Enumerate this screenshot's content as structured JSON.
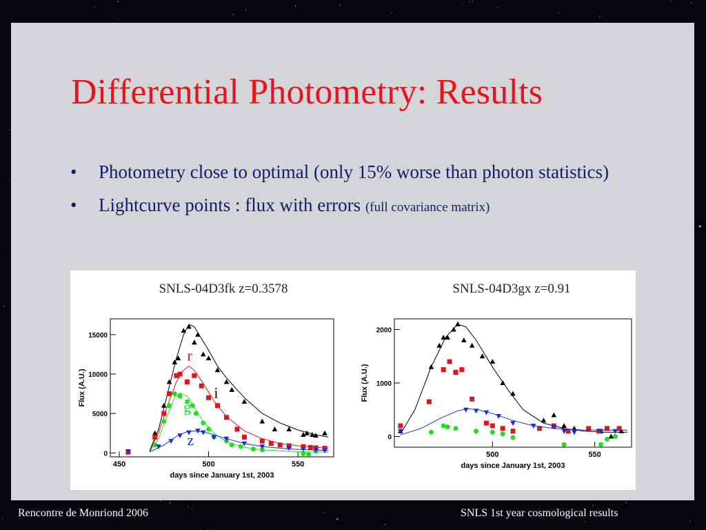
{
  "slide": {
    "title": "Differential Photometry: Results",
    "bullets": [
      {
        "text": "Photometry close to optimal (only 15% worse than photon statistics)",
        "note": ""
      },
      {
        "text": "Lightcurve points : flux with errors",
        "note": "(full covariance matrix)"
      }
    ],
    "footer_left": "Rencontre de Monriond 2006",
    "footer_right": "SNLS 1st year cosmological  results"
  },
  "colors": {
    "title": "#e8141b",
    "bullets": "#141a6e",
    "panel": "#d3d5d9",
    "band_i": "#000000",
    "band_r": "#e0141b",
    "band_g": "#1ee01e",
    "band_z": "#1a2fd6"
  },
  "chart_data": [
    {
      "type": "scatter",
      "title": "SNLS-04D3fk z=0.3578",
      "xlabel": "days since January 1st, 2003",
      "ylabel": "Flux (A.U.)",
      "xlim": [
        445,
        570
      ],
      "ylim": [
        -500,
        17000
      ],
      "xticks": [
        450,
        500,
        550
      ],
      "yticks": [
        0,
        5000,
        10000,
        15000
      ],
      "series": [
        {
          "name": "i",
          "color": "#000000",
          "marker": "triangle-up",
          "points": [
            [
              455,
              100
            ],
            [
              470,
              2500
            ],
            [
              475,
              6000
            ],
            [
              478,
              9000
            ],
            [
              481,
              11500
            ],
            [
              483,
              12000
            ],
            [
              486,
              15500
            ],
            [
              489,
              16000
            ],
            [
              492,
              14000
            ],
            [
              494,
              15000
            ],
            [
              497,
              12500
            ],
            [
              500,
              12000
            ],
            [
              505,
              10500
            ],
            [
              510,
              9000
            ],
            [
              513,
              8000
            ],
            [
              520,
              6500
            ],
            [
              530,
              4000
            ],
            [
              537,
              3000
            ],
            [
              545,
              3000
            ],
            [
              553,
              2300
            ],
            [
              555,
              2500
            ],
            [
              558,
              2300
            ],
            [
              560,
              2200
            ],
            [
              565,
              2500
            ]
          ],
          "curve": [
            [
              467,
              300
            ],
            [
              472,
              3000
            ],
            [
              477,
              7500
            ],
            [
              482,
              12000
            ],
            [
              486,
              15000
            ],
            [
              489,
              16300
            ],
            [
              492,
              16000
            ],
            [
              496,
              14500
            ],
            [
              500,
              13000
            ],
            [
              505,
              11000
            ],
            [
              510,
              9500
            ],
            [
              520,
              7000
            ],
            [
              530,
              5000
            ],
            [
              540,
              3800
            ],
            [
              550,
              2900
            ],
            [
              560,
              2300
            ],
            [
              567,
              2000
            ]
          ]
        },
        {
          "name": "r",
          "color": "#e0141b",
          "marker": "square",
          "points": [
            [
              455,
              100
            ],
            [
              470,
              2000
            ],
            [
              475,
              5000
            ],
            [
              478,
              7500
            ],
            [
              482,
              9800
            ],
            [
              484,
              10000
            ],
            [
              488,
              9000
            ],
            [
              492,
              9800
            ],
            [
              496,
              8500
            ],
            [
              500,
              7000
            ],
            [
              505,
              6000
            ],
            [
              510,
              4500
            ],
            [
              516,
              3000
            ],
            [
              520,
              2000
            ],
            [
              530,
              1500
            ],
            [
              535,
              1200
            ],
            [
              540,
              1000
            ],
            [
              545,
              900
            ],
            [
              553,
              800
            ],
            [
              557,
              700
            ],
            [
              560,
              650
            ],
            [
              565,
              600
            ]
          ],
          "curve": [
            [
              467,
              200
            ],
            [
              472,
              2500
            ],
            [
              477,
              6000
            ],
            [
              482,
              9000
            ],
            [
              486,
              10500
            ],
            [
              489,
              11000
            ],
            [
              492,
              10500
            ],
            [
              497,
              8800
            ],
            [
              503,
              6600
            ],
            [
              510,
              4600
            ],
            [
              520,
              2800
            ],
            [
              530,
              1800
            ],
            [
              540,
              1200
            ],
            [
              550,
              900
            ],
            [
              560,
              700
            ],
            [
              567,
              600
            ]
          ]
        },
        {
          "name": "g",
          "color": "#1ee01e",
          "marker": "circle",
          "points": [
            [
              470,
              1000
            ],
            [
              475,
              4000
            ],
            [
              478,
              6000
            ],
            [
              481,
              7500
            ],
            [
              484,
              7200
            ],
            [
              488,
              6500
            ],
            [
              491,
              6000
            ],
            [
              493,
              5000
            ],
            [
              497,
              3800
            ],
            [
              500,
              3000
            ],
            [
              503,
              2000
            ],
            [
              510,
              1500
            ],
            [
              513,
              1000
            ],
            [
              518,
              800
            ],
            [
              525,
              500
            ],
            [
              530,
              400
            ],
            [
              553,
              -100
            ],
            [
              556,
              -200
            ],
            [
              560,
              200
            ]
          ],
          "curve": [
            [
              467,
              100
            ],
            [
              472,
              1800
            ],
            [
              477,
              4800
            ],
            [
              481,
              7000
            ],
            [
              484,
              7600
            ],
            [
              488,
              7200
            ],
            [
              492,
              5800
            ],
            [
              497,
              4000
            ],
            [
              503,
              2500
            ],
            [
              510,
              1400
            ],
            [
              520,
              700
            ],
            [
              530,
              400
            ],
            [
              545,
              200
            ],
            [
              560,
              100
            ],
            [
              567,
              80
            ]
          ]
        },
        {
          "name": "z",
          "color": "#1a2fd6",
          "marker": "triangle-down",
          "points": [
            [
              455,
              200
            ],
            [
              472,
              800
            ],
            [
              479,
              1500
            ],
            [
              484,
              2200
            ],
            [
              489,
              2600
            ],
            [
              494,
              2800
            ],
            [
              497,
              2600
            ],
            [
              503,
              2000
            ],
            [
              510,
              1800
            ],
            [
              520,
              1200
            ],
            [
              530,
              800
            ],
            [
              545,
              600
            ],
            [
              553,
              500
            ],
            [
              560,
              400
            ],
            [
              565,
              300
            ]
          ],
          "curve": [
            [
              467,
              100
            ],
            [
              475,
              1000
            ],
            [
              482,
              2100
            ],
            [
              488,
              2700
            ],
            [
              493,
              2800
            ],
            [
              500,
              2500
            ],
            [
              510,
              1800
            ],
            [
              520,
              1200
            ],
            [
              530,
              800
            ],
            [
              545,
              500
            ],
            [
              560,
              350
            ],
            [
              567,
              300
            ]
          ]
        }
      ]
    },
    {
      "type": "scatter",
      "title": "SNLS-04D3gx z=0.91",
      "xlabel": "days since January 1st, 2003",
      "ylabel": "Flux (A.U.)",
      "xlim": [
        452,
        568
      ],
      "ylim": [
        -200,
        2200
      ],
      "xticks": [
        450,
        500,
        550
      ],
      "yticks": [
        0,
        1000,
        2000
      ],
      "series": [
        {
          "name": "i",
          "color": "#000000",
          "marker": "triangle-up",
          "points": [
            [
              455,
              100
            ],
            [
              470,
              1300
            ],
            [
              474,
              1700
            ],
            [
              476,
              1850
            ],
            [
              478,
              1850
            ],
            [
              481,
              2000
            ],
            [
              483,
              2100
            ],
            [
              486,
              1800
            ],
            [
              490,
              1700
            ],
            [
              495,
              1500
            ],
            [
              500,
              1400
            ],
            [
              505,
              1000
            ],
            [
              510,
              800
            ],
            [
              525,
              300
            ],
            [
              530,
              400
            ],
            [
              535,
              200
            ],
            [
              540,
              150
            ],
            [
              553,
              100
            ],
            [
              558,
              0
            ],
            [
              563,
              100
            ]
          ],
          "curve": [
            [
              455,
              50
            ],
            [
              462,
              500
            ],
            [
              470,
              1300
            ],
            [
              477,
              1850
            ],
            [
              483,
              2100
            ],
            [
              487,
              2050
            ],
            [
              492,
              1800
            ],
            [
              500,
              1300
            ],
            [
              508,
              850
            ],
            [
              515,
              500
            ],
            [
              525,
              250
            ],
            [
              535,
              150
            ],
            [
              545,
              100
            ],
            [
              555,
              80
            ],
            [
              566,
              80
            ]
          ]
        },
        {
          "name": "r",
          "color": "#e0141b",
          "marker": "square",
          "points": [
            [
              455,
              200
            ],
            [
              469,
              650
            ],
            [
              476,
              1250
            ],
            [
              479,
              1400
            ],
            [
              482,
              1200
            ],
            [
              485,
              1250
            ],
            [
              490,
              700
            ],
            [
              497,
              250
            ],
            [
              500,
              200
            ],
            [
              505,
              150
            ],
            [
              510,
              100
            ],
            [
              523,
              150
            ],
            [
              530,
              200
            ],
            [
              537,
              100
            ],
            [
              547,
              150
            ],
            [
              552,
              100
            ],
            [
              556,
              150
            ],
            [
              562,
              150
            ]
          ],
          "curve": []
        },
        {
          "name": "g",
          "color": "#1ee01e",
          "marker": "circle",
          "points": [
            [
              470,
              80
            ],
            [
              476,
              200
            ],
            [
              478,
              180
            ],
            [
              482,
              150
            ],
            [
              492,
              100
            ],
            [
              500,
              80
            ],
            [
              505,
              50
            ],
            [
              510,
              -20
            ],
            [
              535,
              -150
            ],
            [
              553,
              -150
            ],
            [
              556,
              -50
            ],
            [
              560,
              0
            ]
          ],
          "curve": []
        },
        {
          "name": "z",
          "color": "#1a2fd6",
          "marker": "triangle-down",
          "points": [
            [
              455,
              100
            ],
            [
              487,
              500
            ],
            [
              492,
              480
            ],
            [
              497,
              450
            ],
            [
              503,
              380
            ],
            [
              510,
              250
            ],
            [
              520,
              200
            ],
            [
              530,
              180
            ],
            [
              535,
              100
            ],
            [
              540,
              80
            ],
            [
              553,
              100
            ],
            [
              560,
              100
            ]
          ],
          "curve": [
            [
              455,
              30
            ],
            [
              465,
              150
            ],
            [
              475,
              350
            ],
            [
              483,
              480
            ],
            [
              488,
              520
            ],
            [
              493,
              500
            ],
            [
              500,
              430
            ],
            [
              510,
              300
            ],
            [
              520,
              200
            ],
            [
              530,
              150
            ],
            [
              545,
              120
            ],
            [
              566,
              120
            ]
          ]
        }
      ]
    }
  ]
}
